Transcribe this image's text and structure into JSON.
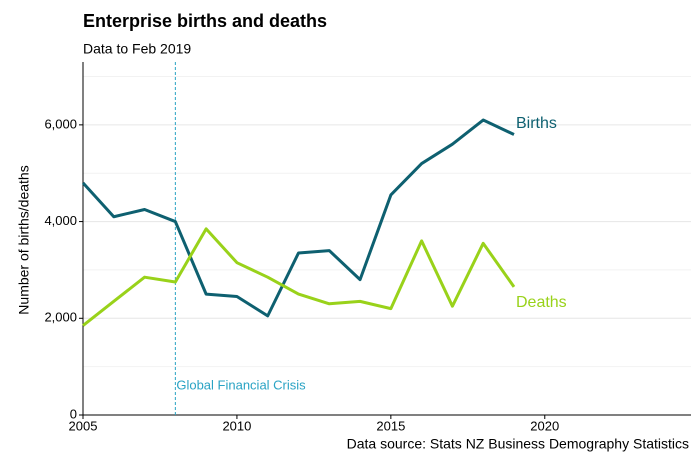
{
  "chart_data": {
    "type": "line",
    "title": "Enterprise births and deaths",
    "subtitle": "Data to Feb 2019",
    "y_label": "Number of births/deaths",
    "source": "Data source: Stats NZ Business Demography Statistics",
    "x": [
      2005,
      2006,
      2007,
      2008,
      2009,
      2010,
      2011,
      2012,
      2013,
      2014,
      2015,
      2016,
      2017,
      2018,
      2019
    ],
    "series": [
      {
        "name": "Births",
        "color": "#0e6070",
        "values": [
          4800,
          4100,
          4250,
          4000,
          2500,
          2450,
          2050,
          3350,
          3400,
          2800,
          4550,
          5200,
          5600,
          6100,
          5800
        ]
      },
      {
        "name": "Deaths",
        "color": "#99d21a",
        "values": [
          1850,
          2350,
          2850,
          2750,
          3850,
          3150,
          2850,
          2500,
          2300,
          2350,
          2200,
          3600,
          2250,
          3550,
          2650
        ]
      }
    ],
    "xlim": [
      2005,
      2024.75
    ],
    "ylim": [
      0,
      7300
    ],
    "xticks": [
      2005,
      2010,
      2015,
      2020
    ],
    "yticks": [
      0,
      {
        "value": 2000,
        "label": "2,000"
      },
      {
        "value": 4000,
        "label": "4,000"
      },
      {
        "value": 6000,
        "label": "6,000"
      }
    ],
    "minor_grid": [
      1000,
      3000,
      5000,
      7000
    ],
    "grid": true,
    "annotation": {
      "x": 2008,
      "text": "Global Financial Crisis",
      "color": "#29a3c4"
    }
  }
}
